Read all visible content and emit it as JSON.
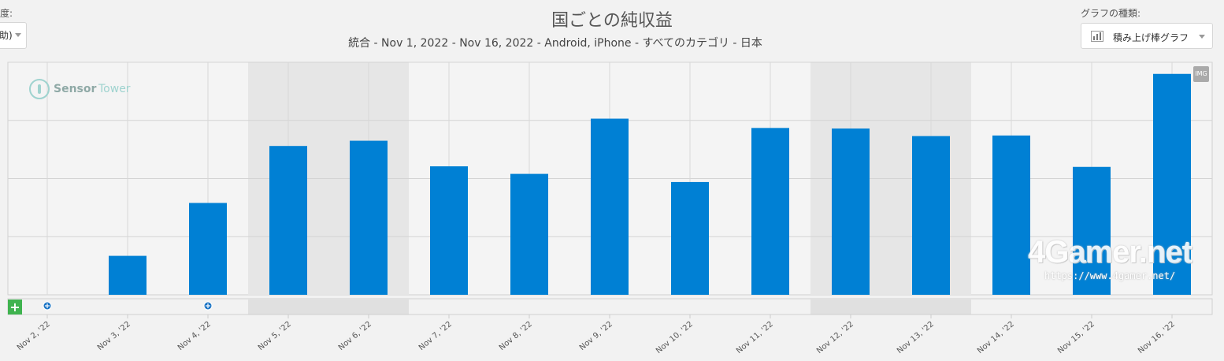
{
  "header": {
    "left_label": "度:",
    "left_select_value": "助)",
    "title": "国ごとの純収益",
    "subtitle": "統合 - Nov 1, 2022 - Nov 16, 2022 - Android, iPhone - すべてのカテゴリ - 日本",
    "chart_type_label": "グラフの種類:",
    "chart_type_value": "積み上げ棒グラフ",
    "chart_type_icon": "bar-chart-icon"
  },
  "watermarks": {
    "brand_a": "Sensor",
    "brand_b": "Tower",
    "image_button": "IMG",
    "add_button": "+",
    "site_logo": "4Gamer.net",
    "site_url": "https://www.4gamer.net/"
  },
  "chart_data": {
    "type": "bar",
    "title": "国ごとの純収益",
    "subtitle": "統合 - Nov 1, 2022 - Nov 16, 2022 - Android, iPhone - すべてのカテゴリ - 日本",
    "categories": [
      "Nov 2, '22",
      "Nov 3, '22",
      "Nov 4, '22",
      "Nov 5, '22",
      "Nov 6, '22",
      "Nov 7, '22",
      "Nov 8, '22",
      "Nov 9, '22",
      "Nov 10, '22",
      "Nov 11, '22",
      "Nov 12, '22",
      "Nov 13, '22",
      "Nov 14, '22",
      "Nov 15, '22",
      "Nov 16, '22"
    ],
    "values": [
      0,
      0.67,
      1.58,
      2.56,
      2.65,
      2.21,
      2.08,
      3.03,
      1.94,
      2.87,
      2.86,
      2.73,
      2.74,
      2.2,
      3.8
    ],
    "ylim": [
      0,
      4
    ],
    "y_gridlines": [
      1,
      2,
      3,
      4
    ],
    "y_tick_labels_visible": false,
    "bar_color": "#0080d4",
    "weekend_shaded_categories": [
      "Nov 5, '22",
      "Nov 6, '22",
      "Nov 12, '22",
      "Nov 13, '22"
    ],
    "event_markers_at": [
      "Nov 2, '22",
      "Nov 4, '22"
    ],
    "xlabel": "",
    "ylabel": "",
    "legend": "none",
    "grid": true
  }
}
